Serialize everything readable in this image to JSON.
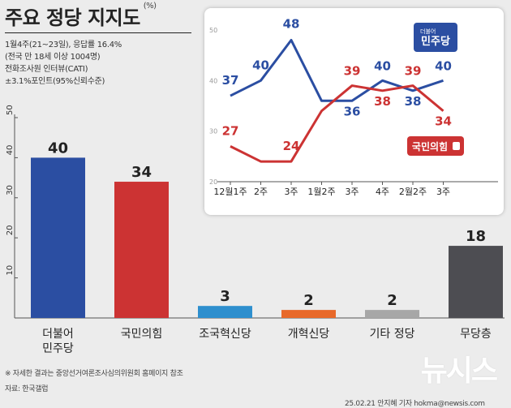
{
  "header": {
    "title": "주요 정당 지지도",
    "unit": "(%)",
    "meta_lines": [
      "1월4주(21~23일), 응답률 16.4%",
      "(전국 만 18세 이상 1004명)",
      "전화조사원 인터뷰(CATI)",
      "±3.1%포인트(95%신뢰수준)"
    ]
  },
  "footer": {
    "note": "※ 자세한 결과는 중앙선거여론조사심의위원회 홈페이지 참조",
    "source": "자료: 한국갤럽",
    "credit": "25.02.21 안지혜 기자 hokma@newsis.com",
    "logo": "뉴시스"
  },
  "chart_data": [
    {
      "type": "bar",
      "categories": [
        "더불어\n민주당",
        "국민의힘",
        "조국혁신당",
        "개혁신당",
        "기타 정당",
        "무당층"
      ],
      "values": [
        40,
        34,
        3,
        2,
        2,
        18
      ],
      "colors": [
        "#2b4ea2",
        "#cc3333",
        "#2e8fce",
        "#e8692a",
        "#a7a7a7",
        "#4d4d52"
      ],
      "yticks": [
        10,
        20,
        30,
        40,
        50
      ],
      "ylim": [
        0,
        50
      ],
      "grid": false
    },
    {
      "type": "line",
      "x": [
        "12월1주",
        "2주",
        "3주",
        "1월2주",
        "3주",
        "4주",
        "2월2주",
        "3주"
      ],
      "yticks": [
        20,
        30,
        40,
        50
      ],
      "ylim": [
        20,
        50
      ],
      "series": [
        {
          "name": "민주당",
          "name_prefix": "더불어",
          "color": "#2b4ea2",
          "values": [
            37,
            40,
            48,
            36,
            36,
            40,
            38,
            40
          ],
          "labels": [
            "37",
            "40",
            "48",
            "",
            "36",
            "40",
            "38",
            "40"
          ]
        },
        {
          "name": "국민의힘",
          "color": "#cc3333",
          "values": [
            27,
            24,
            24,
            34,
            39,
            38,
            39,
            34
          ],
          "labels": [
            "27",
            "",
            "24",
            "",
            "39",
            "38",
            "39",
            "34"
          ]
        }
      ]
    }
  ]
}
